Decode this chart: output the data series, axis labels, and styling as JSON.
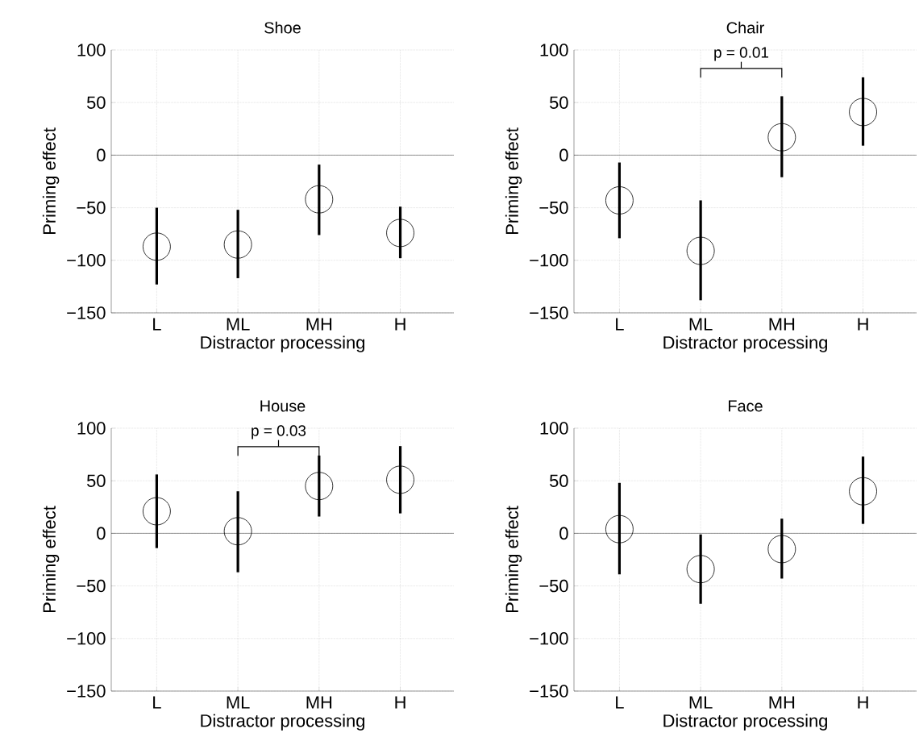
{
  "chart_data": [
    {
      "type": "scatter",
      "title": "Shoe",
      "xlabel": "Distractor processing",
      "ylabel": "Priming effect",
      "categories": [
        "L",
        "ML",
        "MH",
        "H"
      ],
      "values": [
        -87,
        -85,
        -42,
        -74
      ],
      "errors": [
        [
          -123,
          -50
        ],
        [
          -117,
          -52
        ],
        [
          -76,
          -9
        ],
        [
          -98,
          -49
        ]
      ],
      "color": "#000000",
      "marker": "circle",
      "grid": true,
      "ylim": [
        -150,
        100
      ],
      "yticks": [
        {
          "value": -150,
          "label": "−150"
        },
        {
          "value": -100,
          "label": "−100"
        },
        {
          "value": -50,
          "label": "−50"
        },
        0,
        50,
        100
      ],
      "ref_lines": [
        {
          "axis": "y",
          "value": 0
        }
      ]
    },
    {
      "type": "scatter",
      "title": "Chair",
      "xlabel": "Distractor processing",
      "ylabel": "Priming effect",
      "categories": [
        "L",
        "ML",
        "MH",
        "H"
      ],
      "values": [
        -43,
        -91,
        17,
        41
      ],
      "errors": [
        [
          -79,
          -7
        ],
        [
          -138,
          -43
        ],
        [
          -21,
          56
        ],
        [
          9,
          74
        ]
      ],
      "color": "#000000",
      "marker": "circle",
      "grid": true,
      "ylim": [
        -150,
        100
      ],
      "yticks": [
        {
          "value": -150,
          "label": "−150"
        },
        {
          "value": -100,
          "label": "−100"
        },
        {
          "value": -50,
          "label": "−50"
        },
        0,
        50,
        100
      ],
      "ref_lines": [
        {
          "axis": "y",
          "value": 0
        }
      ],
      "annotations": [
        "p = 0.01"
      ]
    },
    {
      "type": "scatter",
      "title": "House",
      "xlabel": "Distractor processing",
      "ylabel": "Priming effect",
      "categories": [
        "L",
        "ML",
        "MH",
        "H"
      ],
      "values": [
        21,
        2,
        45,
        51
      ],
      "errors": [
        [
          -14,
          56
        ],
        [
          -37,
          40
        ],
        [
          16,
          74
        ],
        [
          19,
          83
        ]
      ],
      "color": "#000000",
      "marker": "circle",
      "grid": true,
      "ylim": [
        -150,
        100
      ],
      "yticks": [
        {
          "value": -150,
          "label": "−150"
        },
        {
          "value": -100,
          "label": "−100"
        },
        {
          "value": -50,
          "label": "−50"
        },
        0,
        50,
        100
      ],
      "ref_lines": [
        {
          "axis": "y",
          "value": 0
        }
      ],
      "annotations": [
        "p = 0.03"
      ]
    },
    {
      "type": "scatter",
      "title": "Face",
      "xlabel": "Distractor processing",
      "ylabel": "Priming effect",
      "categories": [
        "L",
        "ML",
        "MH",
        "H"
      ],
      "values": [
        4,
        -34,
        -15,
        40
      ],
      "errors": [
        [
          -39,
          48
        ],
        [
          -67,
          -1
        ],
        [
          -43,
          14
        ],
        [
          9,
          73
        ]
      ],
      "color": "#000000",
      "marker": "circle",
      "grid": true,
      "ylim": [
        -150,
        100
      ],
      "yticks": [
        {
          "value": -150,
          "label": "−150"
        },
        {
          "value": -100,
          "label": "−100"
        },
        {
          "value": -50,
          "label": "−50"
        },
        0,
        50,
        100
      ],
      "ref_lines": [
        {
          "axis": "y",
          "value": 0
        }
      ]
    }
  ]
}
